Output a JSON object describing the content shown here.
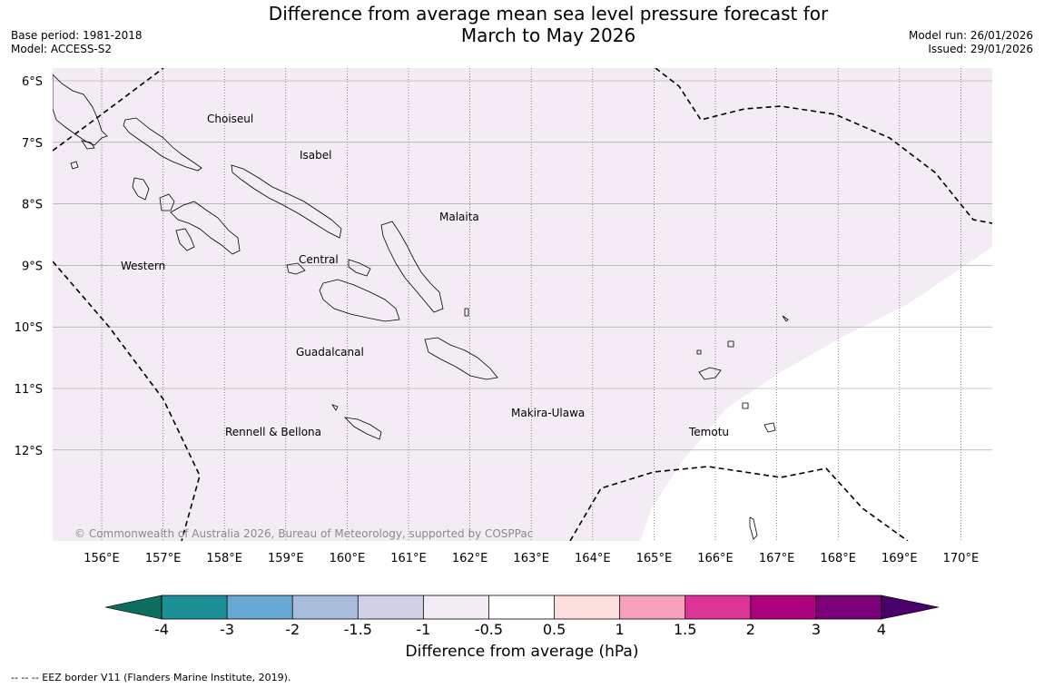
{
  "header": {
    "title_line1": "Difference from average mean sea level pressure forecast for",
    "title_line2": "March to May 2026",
    "base_period": "Base period: 1981-2018",
    "model": "Model: ACCESS-S2",
    "model_run": "Model run: 26/01/2026",
    "issued": "Issued: 29/01/2026"
  },
  "map": {
    "lat_labels": [
      "6°S",
      "7°S",
      "8°S",
      "9°S",
      "10°S",
      "11°S",
      "12°S"
    ],
    "lon_labels": [
      "156°E",
      "157°E",
      "158°E",
      "159°E",
      "160°E",
      "161°E",
      "162°E",
      "163°E",
      "164°E",
      "165°E",
      "166°E",
      "167°E",
      "168°E",
      "169°E",
      "170°E"
    ],
    "provinces": [
      "Choiseul",
      "Isabel",
      "Malaita",
      "Western",
      "Central",
      "Guadalcanal",
      "Makira-Ulawa",
      "Rennell & Bellona",
      "Temotu"
    ],
    "copyright": "© Commonwealth of Australia 2026, Bureau of Meteorology, supported by COSPPac",
    "shading_category": "-1 to -0.5",
    "shading_color": "#f4ecf5"
  },
  "colorbar": {
    "ticks": [
      "-4",
      "-3",
      "-2",
      "-1.5",
      "-1",
      "-0.5",
      "0.5",
      "1",
      "1.5",
      "2",
      "3",
      "4"
    ],
    "colors": [
      "#1d8f96",
      "#67a8d4",
      "#a8bcdc",
      "#d0d1e6",
      "#f4ecf5",
      "#ffffff",
      "#fde0de",
      "#f89fbb",
      "#dd3497",
      "#ae017e",
      "#7a0177"
    ],
    "low_extend_color": "#0d6e5f",
    "high_extend_color": "#49006a",
    "label": "Difference from average (hPa)"
  },
  "footer": {
    "legend": "--  --  -- EEZ border V11 (Flanders Marine Institute, 2019)."
  }
}
